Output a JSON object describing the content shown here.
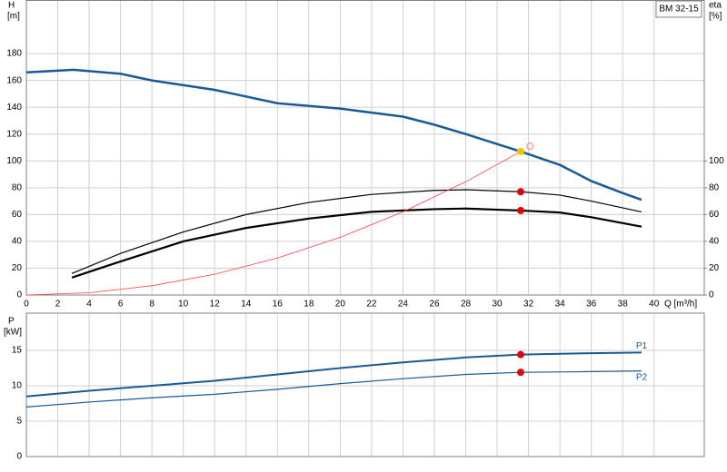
{
  "chart_data": [
    {
      "type": "line",
      "title": "BM 32-15",
      "ylabel": "H",
      "ylabel_unit": "[m]",
      "y2label": "eta",
      "y2label_unit": "[%]",
      "xlabel": "Q [m³/h]",
      "xlim": [
        0,
        43.2
      ],
      "xticks": [
        0,
        2,
        4,
        6,
        8,
        10,
        12,
        14,
        16,
        18,
        20,
        22,
        24,
        26,
        28,
        30,
        32,
        34,
        36,
        38,
        40
      ],
      "ylim": [
        0,
        220
      ],
      "yticks": [
        0,
        20,
        40,
        60,
        80,
        100,
        120,
        140,
        160,
        180
      ],
      "y2lim": [
        0,
        220
      ],
      "y2ticks": [
        0,
        20,
        40,
        60,
        80,
        100
      ],
      "grid": true,
      "series": [
        {
          "color": "#1a5a96",
          "axis": "y",
          "x": [
            0,
            3,
            6,
            8,
            12,
            16,
            20,
            24,
            26,
            28,
            31.5,
            34,
            36,
            38,
            39.2
          ],
          "values": [
            166,
            168,
            165,
            160,
            153,
            143,
            139,
            133,
            127,
            120,
            107,
            97,
            85,
            76,
            71
          ]
        },
        {
          "color": "#000000",
          "axis": "y2",
          "x": [
            2.9,
            6,
            10,
            14,
            18,
            22,
            26,
            28,
            31.5,
            34,
            36,
            39.2
          ],
          "values": [
            16,
            31,
            47,
            60,
            69,
            75,
            78,
            78.5,
            77,
            74.5,
            70,
            62
          ]
        },
        {
          "color": "#000000",
          "axis": "y2",
          "x": [
            2.9,
            6,
            10,
            14,
            18,
            22,
            26,
            28,
            31.5,
            34,
            36,
            39.2
          ],
          "values": [
            13,
            25,
            40,
            50,
            57,
            62,
            64,
            64.5,
            63,
            61.5,
            58,
            51
          ]
        },
        {
          "color": "#ff4040",
          "axis": "y",
          "x": [
            0,
            4,
            8,
            12,
            16,
            20,
            24,
            28,
            31.5
          ],
          "values": [
            0,
            1.7,
            6.9,
            15.5,
            27.6,
            43,
            62,
            84.5,
            107
          ]
        }
      ],
      "points": [
        {
          "x": 31.5,
          "y": 107,
          "axis": "y",
          "color": "#ffc000",
          "filled": true
        },
        {
          "x": 31.5,
          "y": 77,
          "axis": "y2",
          "color": "#e00000",
          "filled": true
        },
        {
          "x": 31.5,
          "y": 63,
          "axis": "y2",
          "color": "#e00000",
          "filled": true
        },
        {
          "x": 32.1,
          "y": 111,
          "axis": "y",
          "color": "#ff8080",
          "filled": false
        }
      ]
    },
    {
      "type": "line",
      "ylabel": "P",
      "ylabel_unit": "[kW]",
      "xlim": [
        0,
        43.2
      ],
      "xticks": [
        0,
        2,
        4,
        6,
        8,
        10,
        12,
        14,
        16,
        18,
        20,
        22,
        24,
        26,
        28,
        30,
        32,
        34,
        36,
        38,
        40
      ],
      "ylim": [
        0,
        20
      ],
      "yticks": [
        0,
        5,
        10,
        15
      ],
      "grid": true,
      "series": [
        {
          "name": "P1",
          "color": "#1a5a96",
          "axis": "y",
          "x": [
            0,
            4,
            8,
            12,
            16,
            20,
            24,
            28,
            31.5,
            36,
            39.2
          ],
          "values": [
            8.5,
            9.3,
            10,
            10.7,
            11.6,
            12.5,
            13.3,
            14.0,
            14.4,
            14.6,
            14.7
          ]
        },
        {
          "name": "P2",
          "color": "#1a5a96",
          "axis": "y",
          "x": [
            0,
            4,
            8,
            12,
            16,
            20,
            24,
            28,
            31.5,
            36,
            39.2
          ],
          "values": [
            7,
            7.7,
            8.3,
            8.8,
            9.5,
            10.3,
            11,
            11.6,
            11.9,
            12.0,
            12.1
          ]
        }
      ],
      "points": [
        {
          "x": 31.5,
          "y": 14.4,
          "axis": "y",
          "color": "#e00000",
          "filled": true
        },
        {
          "x": 31.5,
          "y": 11.9,
          "axis": "y",
          "color": "#e00000",
          "filled": true
        }
      ]
    }
  ]
}
